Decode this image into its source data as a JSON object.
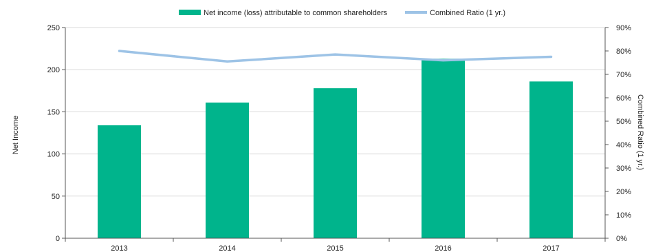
{
  "chart_data": {
    "type": "bar",
    "categories": [
      "2013",
      "2014",
      "2015",
      "2016",
      "2017"
    ],
    "series": [
      {
        "name": "Net income (loss) attributable to common shareholders",
        "type": "bar",
        "axis": "left",
        "color": "#00b48c",
        "values": [
          134,
          161,
          178,
          213,
          186
        ]
      },
      {
        "name": "Combined Ratio (1 yr.)",
        "type": "line",
        "axis": "right",
        "color": "#9dc3e6",
        "values": [
          0.8,
          0.755,
          0.785,
          0.76,
          0.775
        ]
      }
    ],
    "ylabel": "Net Income",
    "y2label": "Combined Ratio (1 yr.)",
    "ylim": [
      0,
      250
    ],
    "yticks": [
      "0",
      "50",
      "100",
      "150",
      "200",
      "250"
    ],
    "y2lim": [
      0,
      0.9
    ],
    "y2ticks": [
      "0%",
      "10%",
      "20%",
      "30%",
      "40%",
      "50%",
      "60%",
      "70%",
      "80%",
      "90%"
    ],
    "grid": "horizontal",
    "legend": "top-center"
  }
}
